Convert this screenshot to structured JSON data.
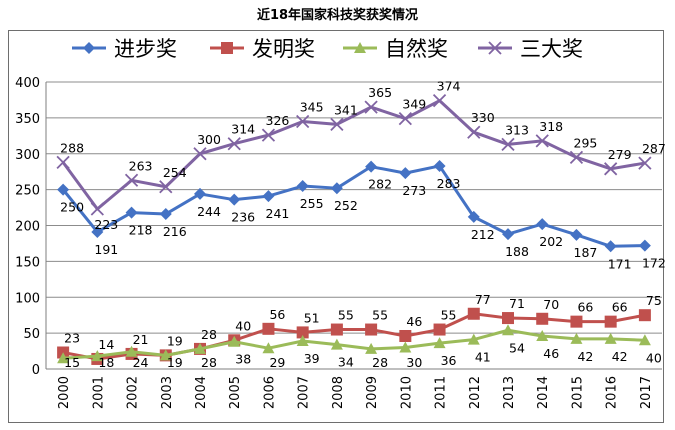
{
  "chart_data": {
    "type": "line",
    "title": "近18年国家科技奖获奖情况",
    "categories": [
      "2000",
      "2001",
      "2002",
      "2003",
      "2004",
      "2005",
      "2006",
      "2007",
      "2008",
      "2009",
      "2010",
      "2011",
      "2012",
      "2013",
      "2014",
      "2015",
      "2016",
      "2017"
    ],
    "ylim": [
      0,
      400
    ],
    "yticks": [
      0,
      50,
      100,
      150,
      200,
      250,
      300,
      350,
      400
    ],
    "grid": "horizontal",
    "legend": "top",
    "series": [
      {
        "name": "进步奖",
        "color": "#4472C4",
        "marker": "diamond",
        "values": [
          250,
          191,
          218,
          216,
          244,
          236,
          241,
          255,
          252,
          282,
          273,
          283,
          212,
          188,
          202,
          187,
          171,
          172
        ]
      },
      {
        "name": "发明奖",
        "color": "#C0504D",
        "marker": "square",
        "values": [
          23,
          14,
          21,
          19,
          28,
          40,
          56,
          51,
          55,
          55,
          46,
          55,
          77,
          71,
          70,
          66,
          66,
          75
        ]
      },
      {
        "name": "自然奖",
        "color": "#9BBB59",
        "marker": "triangle",
        "values": [
          15,
          18,
          24,
          19,
          28,
          38,
          29,
          39,
          34,
          28,
          30,
          36,
          41,
          54,
          46,
          42,
          42,
          40
        ]
      },
      {
        "name": "三大奖",
        "color": "#8064A2",
        "marker": "x",
        "values": [
          288,
          223,
          263,
          254,
          300,
          314,
          326,
          345,
          341,
          365,
          349,
          374,
          330,
          313,
          318,
          295,
          279,
          287
        ]
      }
    ]
  }
}
